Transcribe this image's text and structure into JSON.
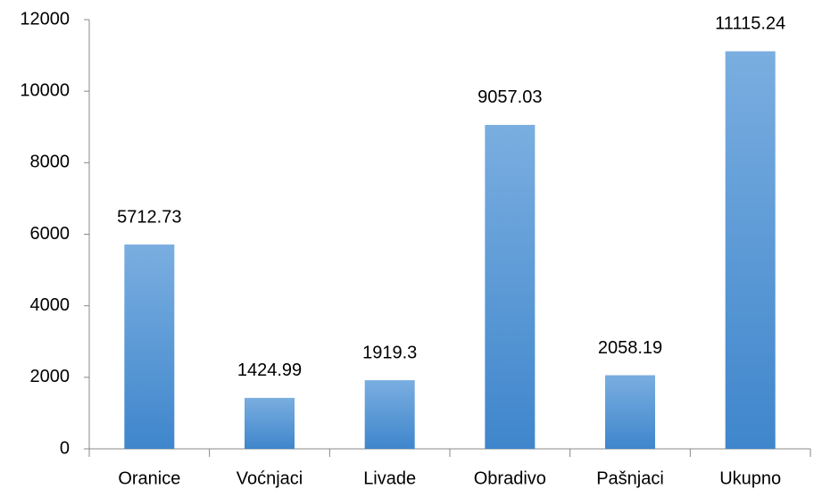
{
  "chart_data": {
    "type": "bar",
    "categories": [
      "Oranice",
      "Voćnjaci",
      "Livade",
      "Obradivo",
      "Pašnjaci",
      "Ukupno"
    ],
    "values": [
      5712.73,
      1424.99,
      1919.3,
      9057.03,
      2058.19,
      11115.24
    ],
    "color": "#5b9bd5",
    "ylim": [
      0,
      12000
    ],
    "yticks": [
      0,
      2000,
      4000,
      6000,
      8000,
      10000,
      12000
    ],
    "grid": false
  }
}
